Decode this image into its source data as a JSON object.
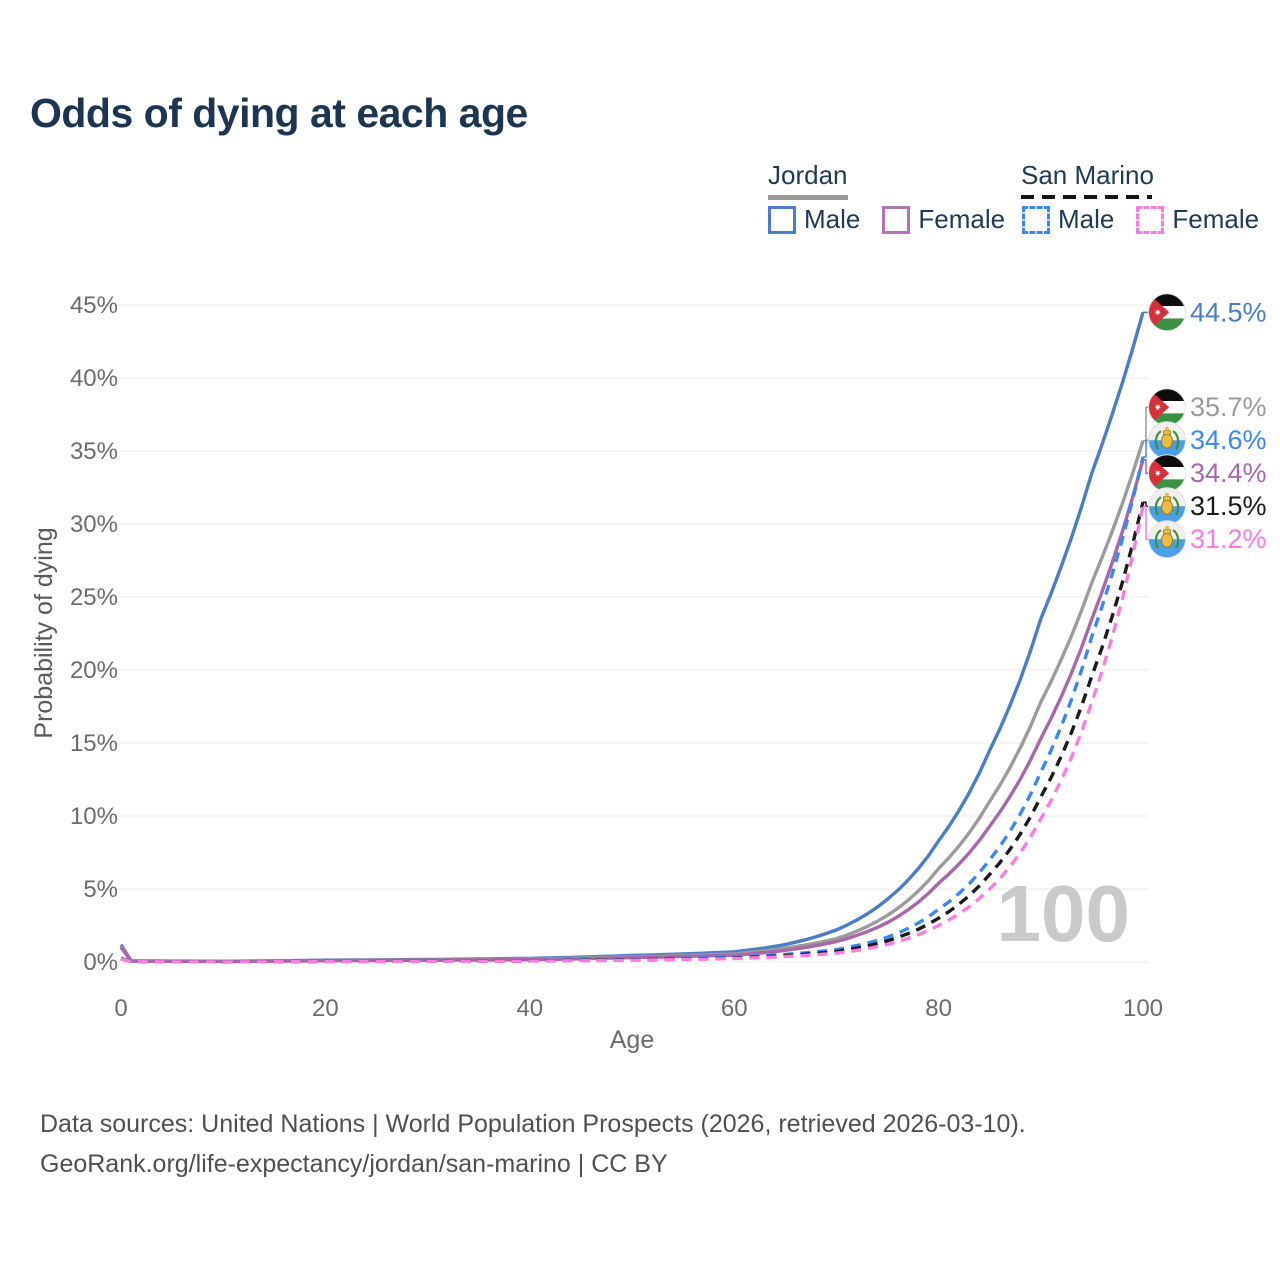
{
  "page": {
    "title": "Odds of dying at each age"
  },
  "legend": {
    "groups": [
      {
        "country": "Jordan",
        "line_style": "solid",
        "line_color": "#999999",
        "items": [
          {
            "label": "Male",
            "color": "#4a7cc7"
          },
          {
            "label": "Female",
            "color": "#b273b5"
          }
        ]
      },
      {
        "country": "San Marino",
        "line_style": "dashed",
        "line_color": "#141414",
        "items": [
          {
            "label": "Male",
            "color": "#3b87f7"
          },
          {
            "label": "Female",
            "color": "#fc7ce3"
          }
        ]
      }
    ]
  },
  "footer": {
    "line1": "Data sources: United Nations | World Population Prospects (2026, retrieved 2026-03-10).",
    "line2": "GeoRank.org/life-expectancy/jordan/san-marino | CC BY"
  },
  "chart_data": {
    "type": "line",
    "title": "Odds of dying at each age",
    "xlabel": "Age",
    "ylabel": "Probability of dying",
    "xlim": [
      0,
      100
    ],
    "ylim": [
      0,
      45
    ],
    "xticks": [
      0,
      20,
      40,
      60,
      80,
      100
    ],
    "yticks": [
      0,
      5,
      10,
      15,
      20,
      25,
      30,
      35,
      40,
      45
    ],
    "ytick_suffix": "%",
    "grid": "horizontal-only",
    "legend_position": "top-right",
    "watermark": "100",
    "x": [
      0,
      1,
      10,
      20,
      30,
      40,
      50,
      55,
      60,
      65,
      70,
      75,
      80,
      85,
      90,
      95,
      100
    ],
    "series": [
      {
        "name": "Jordan Male",
        "country": "jordan",
        "sex": "male",
        "style": "solid",
        "color": "#4a7cc7",
        "end_label": "44.5%",
        "end_value": 44.5,
        "values": [
          1.2,
          0.08,
          0.05,
          0.13,
          0.17,
          0.25,
          0.45,
          0.55,
          0.7,
          1.2,
          2.2,
          4.3,
          8.3,
          14.5,
          23.5,
          33.5,
          44.5
        ]
      },
      {
        "name": "Jordan Combined",
        "country": "jordan",
        "sex": "combined",
        "style": "solid",
        "color": "#9b9b9b",
        "end_label": "35.7%",
        "end_value": 35.7,
        "values": [
          1.1,
          0.07,
          0.04,
          0.11,
          0.14,
          0.2,
          0.36,
          0.45,
          0.55,
          0.95,
          1.6,
          3.2,
          6.4,
          11.0,
          17.8,
          26.0,
          35.7
        ]
      },
      {
        "name": "Jordan Female",
        "country": "jordan",
        "sex": "female",
        "style": "solid",
        "color": "#a768ab",
        "end_label": "34.4%",
        "end_value": 34.4,
        "values": [
          1.0,
          0.06,
          0.04,
          0.09,
          0.12,
          0.16,
          0.3,
          0.38,
          0.47,
          0.8,
          1.4,
          2.7,
          5.4,
          9.3,
          15.3,
          23.5,
          34.4
        ]
      },
      {
        "name": "San Marino Male",
        "country": "san-marino",
        "sex": "male",
        "style": "dashed",
        "color": "#3b87f7",
        "end_label": "34.6%",
        "end_value": 34.6,
        "values": [
          0.25,
          0.02,
          0.01,
          0.05,
          0.06,
          0.09,
          0.18,
          0.24,
          0.32,
          0.52,
          0.85,
          1.7,
          3.6,
          7.0,
          13.0,
          22.3,
          34.6
        ]
      },
      {
        "name": "San Marino Combined",
        "country": "san-marino",
        "sex": "combined",
        "style": "dashed",
        "color": "#1a1a1a",
        "end_label": "31.5%",
        "end_value": 31.5,
        "values": [
          0.22,
          0.02,
          0.01,
          0.04,
          0.05,
          0.08,
          0.15,
          0.2,
          0.27,
          0.44,
          0.72,
          1.45,
          3.0,
          6.0,
          11.3,
          19.6,
          31.5
        ]
      },
      {
        "name": "San Marino Female",
        "country": "san-marino",
        "sex": "female",
        "style": "dashed",
        "color": "#fc7ce3",
        "end_label": "31.2%",
        "end_value": 31.2,
        "values": [
          0.2,
          0.02,
          0.01,
          0.03,
          0.04,
          0.06,
          0.12,
          0.17,
          0.23,
          0.37,
          0.6,
          1.2,
          2.5,
          5.0,
          9.8,
          17.8,
          31.2
        ]
      }
    ]
  }
}
